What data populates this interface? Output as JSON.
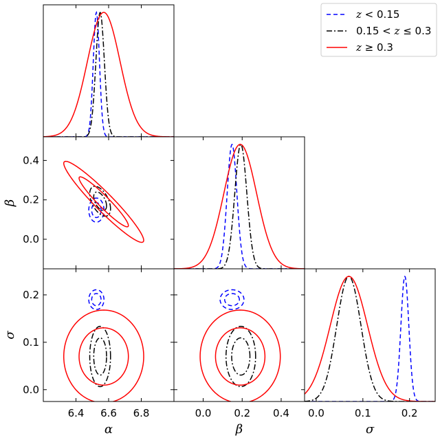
{
  "chart_data": {
    "type": "corner",
    "parameters": [
      {
        "key": "alpha",
        "label": "α",
        "ticks": [
          6.4,
          6.6,
          6.8
        ],
        "tick_labels": [
          "6.4",
          "6.6",
          "6.8"
        ],
        "lim": [
          6.2,
          7.0
        ]
      },
      {
        "key": "beta",
        "label": "β",
        "ticks": [
          0.0,
          0.2,
          0.4
        ],
        "tick_labels": [
          "0.0",
          "0.2",
          "0.4"
        ],
        "lim": [
          -0.15,
          0.52
        ]
      },
      {
        "key": "sigma",
        "label": "σ",
        "ticks": [
          0.0,
          0.1,
          0.2
        ],
        "tick_labels": [
          "0.0",
          "0.1",
          "0.2"
        ],
        "lim": [
          -0.025,
          0.255
        ]
      }
    ],
    "legend": {
      "position": "upper-right",
      "entries": [
        "z < 0.15",
        "0.15 < z ≤ 0.3",
        "z ≥ 0.3"
      ]
    },
    "series": [
      {
        "legend": "z < 0.15",
        "color": "#0000ff",
        "linestyle": "dashed",
        "mean": {
          "alpha": 6.525,
          "beta": 0.148,
          "sigma": 0.19
        },
        "sd": {
          "alpha": 0.019,
          "beta": 0.025,
          "sigma": 0.0085
        },
        "rho": {
          "alpha_beta": 0.0,
          "alpha_sigma": 0.0,
          "beta_sigma": 0.0
        }
      },
      {
        "legend": "0.15 < z ≤ 0.3",
        "color": "#000000",
        "linestyle": "dashdot",
        "mean": {
          "alpha": 6.548,
          "beta": 0.193,
          "sigma": 0.07
        },
        "sd": {
          "alpha": 0.026,
          "beta": 0.031,
          "sigma": 0.026
        },
        "rho": {
          "alpha_beta": -0.5,
          "alpha_sigma": 0.0,
          "beta_sigma": 0.0
        }
      },
      {
        "legend": "z ≥ 0.3",
        "color": "#ff0000",
        "linestyle": "solid",
        "mean": {
          "alpha": 6.57,
          "beta": 0.19,
          "sigma": 0.07
        },
        "sd": {
          "alpha": 0.1,
          "beta": 0.084,
          "sigma": 0.04
        },
        "rho": {
          "alpha_beta": -0.95,
          "alpha_sigma": 0.0,
          "beta_sigma": 0.0
        }
      }
    ],
    "contour_levels": [
      "68%",
      "95%"
    ],
    "grid": false
  }
}
